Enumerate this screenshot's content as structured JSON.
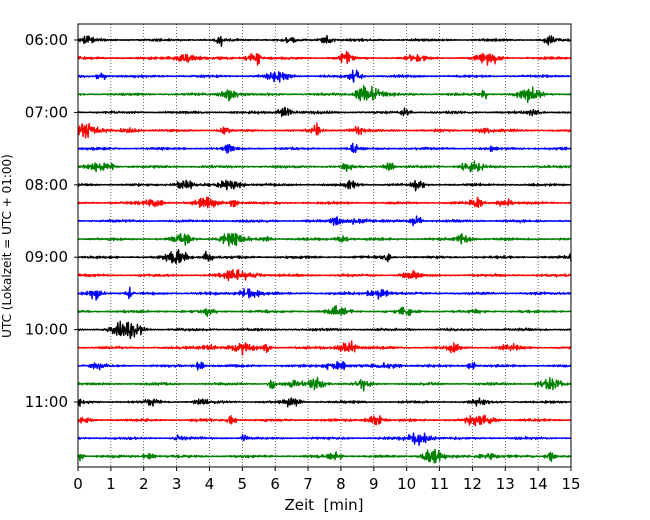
{
  "chart_data": {
    "type": "line",
    "subtype": "helicorder (seismogram drum plot)",
    "xlabel": "Zeit  [min]",
    "ylabel": "UTC (Lokalzeit = UTC + 01:00)",
    "xlim": [
      0,
      15
    ],
    "x_ticks": [
      "0",
      "1",
      "2",
      "3",
      "4",
      "5",
      "6",
      "7",
      "8",
      "9",
      "10",
      "11",
      "12",
      "13",
      "14",
      "15"
    ],
    "y_tick_labels": [
      "06:00",
      "07:00",
      "08:00",
      "09:00",
      "10:00",
      "11:00"
    ],
    "grid": "vertical dotted lines at each minute",
    "trace_count": 24,
    "trace_interval_minutes": 15,
    "trace_start_times_utc": [
      "06:00",
      "06:15",
      "06:30",
      "06:45",
      "07:00",
      "07:15",
      "07:30",
      "07:45",
      "08:00",
      "08:15",
      "08:30",
      "08:45",
      "09:00",
      "09:15",
      "09:30",
      "09:45",
      "10:00",
      "10:15",
      "10:30",
      "10:45",
      "11:00",
      "11:15",
      "11:30",
      "11:45"
    ],
    "trace_color_cycle": [
      "#000000",
      "#ff0000",
      "#0000ff",
      "#008000"
    ]
  }
}
